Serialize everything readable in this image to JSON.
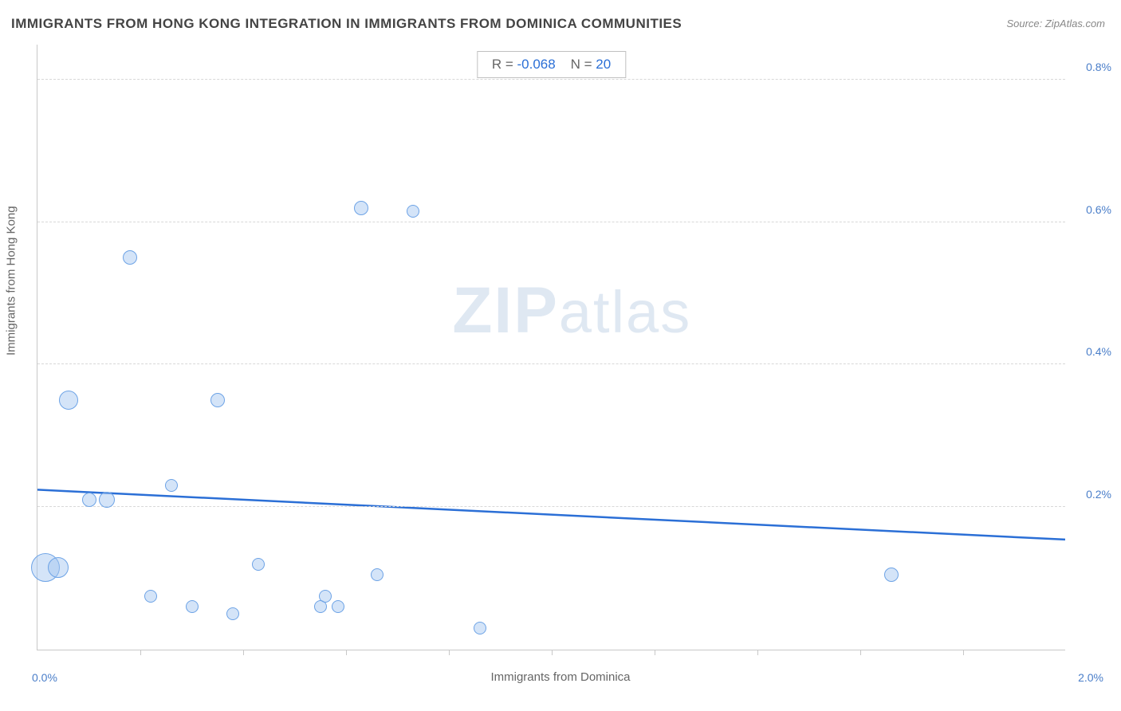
{
  "title": "IMMIGRANTS FROM HONG KONG INTEGRATION IN IMMIGRANTS FROM DOMINICA COMMUNITIES",
  "source": "Source: ZipAtlas.com",
  "watermark": "ZIPatlas",
  "stats": {
    "r_label": "R =",
    "r_value": "-0.068",
    "n_label": "N =",
    "n_value": "20"
  },
  "chart": {
    "type": "scatter",
    "background_color": "#ffffff",
    "grid_color": "#d8d8d8",
    "axis_color": "#c8c8c8",
    "text_color": "#666666",
    "value_color": "#4a7ec9",
    "bubble_fill": "rgba(160,195,240,0.45)",
    "bubble_stroke": "#6da3e6",
    "regression_color": "#2b6fd6",
    "regression_width": 2.5,
    "xaxis": {
      "label": "Immigrants from Dominica",
      "min": 0.0,
      "max": 2.0,
      "min_label": "0.0%",
      "max_label": "2.0%",
      "ticks": [
        0.2,
        0.4,
        0.6,
        0.8,
        1.0,
        1.2,
        1.4,
        1.6,
        1.8
      ]
    },
    "yaxis": {
      "label": "Immigrants from Hong Kong",
      "min": 0.0,
      "max": 0.85,
      "gridlines": [
        0.2,
        0.4,
        0.6,
        0.8
      ],
      "tick_labels": [
        "0.2%",
        "0.4%",
        "0.6%",
        "0.8%"
      ]
    },
    "regression": {
      "y_at_xmin": 0.225,
      "y_at_xmax": 0.155
    },
    "points": [
      {
        "x": 0.015,
        "y": 0.115,
        "r": 18
      },
      {
        "x": 0.04,
        "y": 0.115,
        "r": 13
      },
      {
        "x": 0.06,
        "y": 0.35,
        "r": 12
      },
      {
        "x": 0.1,
        "y": 0.21,
        "r": 9
      },
      {
        "x": 0.135,
        "y": 0.21,
        "r": 10
      },
      {
        "x": 0.18,
        "y": 0.55,
        "r": 9
      },
      {
        "x": 0.22,
        "y": 0.075,
        "r": 8
      },
      {
        "x": 0.26,
        "y": 0.23,
        "r": 8
      },
      {
        "x": 0.3,
        "y": 0.06,
        "r": 8
      },
      {
        "x": 0.35,
        "y": 0.35,
        "r": 9
      },
      {
        "x": 0.38,
        "y": 0.05,
        "r": 8
      },
      {
        "x": 0.43,
        "y": 0.12,
        "r": 8
      },
      {
        "x": 0.55,
        "y": 0.06,
        "r": 8
      },
      {
        "x": 0.56,
        "y": 0.075,
        "r": 8
      },
      {
        "x": 0.585,
        "y": 0.06,
        "r": 8
      },
      {
        "x": 0.63,
        "y": 0.62,
        "r": 9
      },
      {
        "x": 0.66,
        "y": 0.105,
        "r": 8
      },
      {
        "x": 0.73,
        "y": 0.615,
        "r": 8
      },
      {
        "x": 0.86,
        "y": 0.03,
        "r": 8
      },
      {
        "x": 1.66,
        "y": 0.105,
        "r": 9
      }
    ]
  }
}
